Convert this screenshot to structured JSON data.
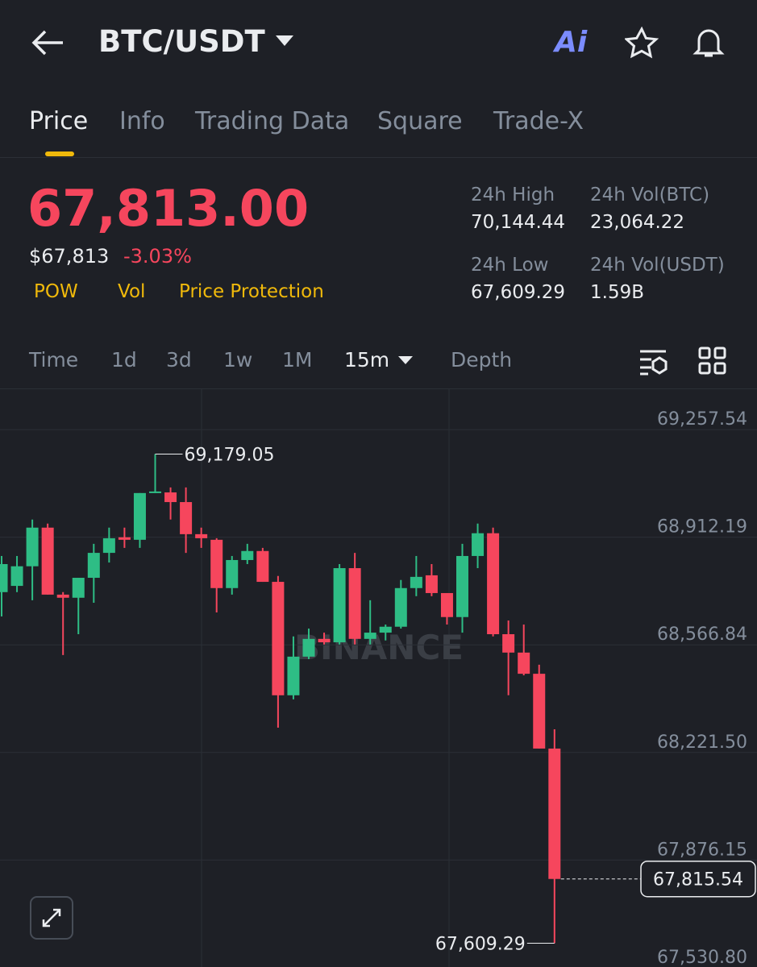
{
  "header": {
    "pair": "BTC/USDT",
    "ai": "Ai"
  },
  "tabs": [
    "Price",
    "Info",
    "Trading Data",
    "Square",
    "Trade-X"
  ],
  "ticker": {
    "price": "67,813.00",
    "usd": "$67,813",
    "change": "-3.03%",
    "tags": [
      "POW",
      "Vol",
      "Price Protection"
    ],
    "stats": [
      {
        "label": "24h High",
        "value": "70,144.44"
      },
      {
        "label": "24h Vol(BTC)",
        "value": "23,064.22"
      },
      {
        "label": "24h Low",
        "value": "67,609.29"
      },
      {
        "label": "24h Vol(USDT)",
        "value": "1.59B"
      }
    ]
  },
  "timeframes": [
    "Time",
    "1d",
    "3d",
    "1w",
    "1M",
    "15m",
    "Depth"
  ],
  "chart_data": {
    "type": "candlestick",
    "watermark": "BINANCE",
    "up_color": "#2ebd85",
    "down_color": "#f6465d",
    "open": [
      68736,
      68756,
      68819,
      68943,
      68728,
      68718,
      68782,
      68862,
      68912,
      68904,
      69054,
      69056,
      69025,
      68922,
      68904,
      68749,
      68839,
      68868,
      68769,
      68405,
      68529,
      68586,
      68575,
      68813,
      68586,
      68606,
      68625,
      68749,
      68790,
      68733,
      68656,
      68852,
      68925,
      68601,
      68542,
      68474,
      68234
    ],
    "high": [
      68852,
      68852,
      68969,
      68956,
      68736,
      68782,
      68891,
      68943,
      68943,
      69054,
      69179.05,
      69072,
      69072,
      68943,
      68909,
      68852,
      68891,
      68878,
      68788,
      68594,
      68619,
      68606,
      68826,
      68862,
      68710,
      68632,
      68775,
      68852,
      68826,
      68733,
      68891,
      68956,
      68943,
      68645,
      68632,
      68503,
      68296
    ],
    "low": [
      68658,
      68736,
      68710,
      68728,
      68534,
      68601,
      68702,
      68831,
      68878,
      68878,
      69054,
      68969,
      68862,
      68878,
      68671,
      68728,
      68826,
      68769,
      68301,
      68392,
      68521,
      68568,
      68568,
      68568,
      68568,
      68581,
      68619,
      68723,
      68723,
      68632,
      68606,
      68813,
      68594,
      68405,
      68469,
      68234,
      67609.29
    ],
    "close": [
      68826,
      68819,
      68943,
      68728,
      68718,
      68782,
      68862,
      68909,
      68904,
      69054,
      69059,
      69025,
      68922,
      68909,
      68749,
      68839,
      68868,
      68769,
      68405,
      68529,
      68586,
      68575,
      68813,
      68586,
      68606,
      68625,
      68749,
      68785,
      68733,
      68656,
      68852,
      68925,
      68601,
      68542,
      68474,
      68234,
      67815.54
    ],
    "ylim": [
      67533,
      69382
    ],
    "yticks": [
      {
        "value": 69257.54,
        "label": "69,257.54"
      },
      {
        "value": 68912.19,
        "label": "68,912.19"
      },
      {
        "value": 68566.84,
        "label": "68,566.84"
      },
      {
        "value": 68221.5,
        "label": "68,221.50"
      },
      {
        "value": 67876.15,
        "label": "67,876.15"
      },
      {
        "value": 67530.8,
        "label": "67,530.80"
      }
    ],
    "high_label": {
      "value": 69179.05,
      "label": "69,179.05"
    },
    "low_label": {
      "value": 67609.29,
      "label": "67,609.29"
    },
    "last_price": {
      "value": 67815.54,
      "label": "67,815.54"
    }
  }
}
